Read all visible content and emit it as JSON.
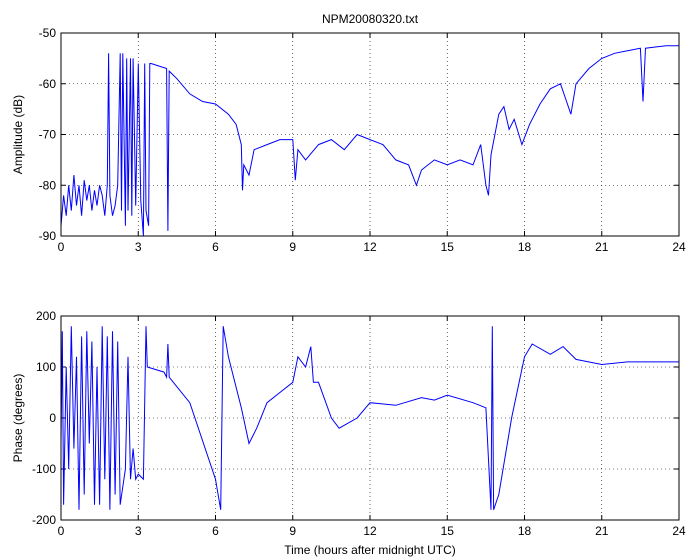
{
  "chart_data": [
    {
      "type": "line",
      "title": "NPM20080320.txt",
      "ylabel": "Amplitude (dB)",
      "color": "#0000ff",
      "grid": true,
      "xlim": [
        0,
        24
      ],
      "xticks": [
        0,
        3,
        6,
        9,
        12,
        15,
        18,
        21,
        24
      ],
      "ylim": [
        -90,
        -50
      ],
      "yticks": [
        -90,
        -80,
        -70,
        -60,
        -50
      ],
      "x": [
        0,
        0.1,
        0.2,
        0.3,
        0.4,
        0.5,
        0.6,
        0.7,
        0.8,
        0.9,
        1.0,
        1.1,
        1.2,
        1.3,
        1.4,
        1.5,
        1.6,
        1.7,
        1.8,
        1.85,
        1.9,
        2.0,
        2.1,
        2.2,
        2.3,
        2.35,
        2.4,
        2.5,
        2.55,
        2.6,
        2.7,
        2.75,
        2.8,
        2.9,
        3.0,
        3.1,
        3.2,
        3.25,
        3.3,
        3.4,
        3.45,
        3.5,
        3.8,
        4.1,
        4.15,
        4.2,
        4.5,
        5,
        5.5,
        6,
        6.5,
        6.8,
        7.0,
        7.05,
        7.1,
        7.3,
        7.5,
        8,
        8.5,
        9,
        9.1,
        9.2,
        9.5,
        10,
        10.5,
        11,
        11.5,
        12,
        12.5,
        13,
        13.5,
        13.8,
        14,
        14.5,
        15,
        15.5,
        16,
        16.3,
        16.5,
        16.6,
        16.7,
        17,
        17.2,
        17.4,
        17.6,
        17.9,
        18.2,
        18.6,
        19,
        19.4,
        19.6,
        19.8,
        20,
        20.5,
        21,
        21.5,
        22,
        22.5,
        22.6,
        22.7,
        23,
        23.5,
        24
      ],
      "values": [
        -88,
        -82,
        -86,
        -80,
        -85,
        -78,
        -84,
        -80,
        -86,
        -79,
        -83,
        -80,
        -85,
        -81,
        -84,
        -80,
        -82,
        -86,
        -80,
        -54,
        -82,
        -86,
        -84,
        -80,
        -54,
        -85,
        -54,
        -88,
        -55,
        -85,
        -55,
        -86,
        -55,
        -84,
        -56,
        -83,
        -90,
        -56,
        -85,
        -88,
        -56,
        -56,
        -56.5,
        -57,
        -89,
        -57.5,
        -59,
        -62,
        -63.5,
        -64,
        -66,
        -68,
        -72,
        -81,
        -76,
        -78,
        -73,
        -72,
        -71,
        -71,
        -79,
        -73,
        -75,
        -72,
        -71,
        -73,
        -70,
        -71,
        -72,
        -75,
        -76,
        -80,
        -77,
        -75,
        -76,
        -75,
        -76,
        -72,
        -80,
        -82,
        -74,
        -66,
        -64.5,
        -69,
        -67,
        -72,
        -68,
        -64,
        -61,
        -60,
        -63,
        -66,
        -60,
        -57,
        -55,
        -54,
        -53.5,
        -53,
        -63.5,
        -53,
        -52.8,
        -52.5,
        -52.5
      ]
    },
    {
      "type": "line",
      "ylabel": "Phase (degrees)",
      "xlabel": "Time (hours after midnight UTC)",
      "color": "#0000ff",
      "grid": true,
      "xlim": [
        0,
        24
      ],
      "xticks": [
        0,
        3,
        6,
        9,
        12,
        15,
        18,
        21,
        24
      ],
      "ylim": [
        -200,
        200
      ],
      "yticks": [
        -200,
        -100,
        0,
        100,
        200
      ],
      "x": [
        0,
        0.05,
        0.1,
        0.2,
        0.3,
        0.4,
        0.5,
        0.6,
        0.7,
        0.8,
        0.9,
        1.0,
        1.1,
        1.2,
        1.3,
        1.4,
        1.5,
        1.6,
        1.7,
        1.8,
        1.9,
        2.0,
        2.1,
        2.2,
        2.3,
        2.5,
        2.6,
        2.7,
        2.8,
        2.9,
        3.0,
        3.1,
        3.2,
        3.3,
        3.35,
        4,
        4.1,
        4.15,
        4.2,
        5,
        6,
        6.2,
        6.3,
        6.5,
        7,
        7.3,
        7.6,
        8,
        8.5,
        9,
        9.2,
        9.5,
        9.7,
        9.8,
        10,
        10.5,
        10.8,
        11.5,
        12,
        13,
        14,
        14.5,
        15,
        16,
        16.5,
        16.7,
        16.75,
        16.8,
        17,
        17.5,
        18,
        18.3,
        19,
        19.5,
        20,
        21,
        22,
        23,
        24
      ],
      "values": [
        -50,
        170,
        -170,
        100,
        -100,
        180,
        -60,
        120,
        -180,
        160,
        -150,
        170,
        -50,
        150,
        -170,
        100,
        -170,
        180,
        -120,
        160,
        -180,
        170,
        -150,
        150,
        -170,
        -100,
        120,
        -120,
        -60,
        -120,
        -110,
        -115,
        -120,
        180,
        100,
        90,
        80,
        145,
        80,
        30,
        -120,
        -180,
        180,
        120,
        20,
        -50,
        -20,
        30,
        50,
        70,
        120,
        100,
        140,
        70,
        70,
        0,
        -20,
        0,
        30,
        25,
        40,
        35,
        45,
        30,
        20,
        -180,
        180,
        -180,
        -150,
        0,
        120,
        145,
        125,
        140,
        115,
        105,
        110,
        110,
        110
      ]
    }
  ]
}
